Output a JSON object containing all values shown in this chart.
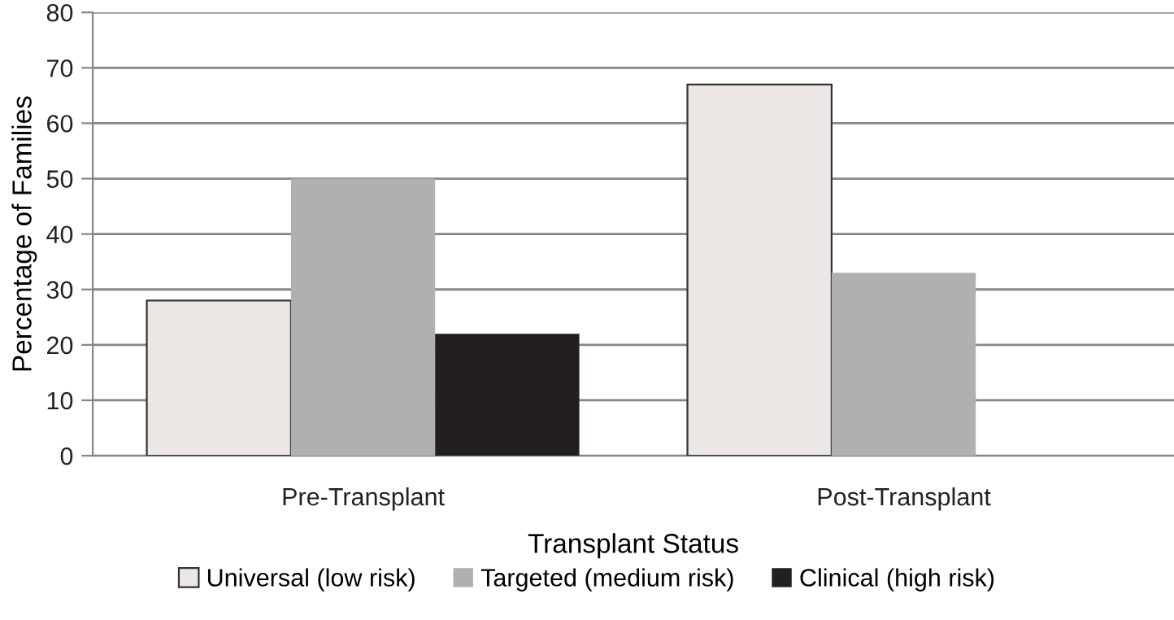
{
  "chart_data": {
    "type": "bar",
    "xlabel": "Transplant Status",
    "ylabel": "Percentage of Families",
    "categories": [
      "Pre-Transplant",
      "Post-Transplant"
    ],
    "series": [
      {
        "name": "Universal (low risk)",
        "color": "#ece6e4",
        "values": [
          28,
          67
        ]
      },
      {
        "name": "Targeted (medium risk)",
        "color": "#afb0b2",
        "values": [
          50,
          33
        ]
      },
      {
        "name": "Clinical (high risk)",
        "color": "#231f20",
        "values": [
          22,
          0
        ]
      }
    ],
    "ylim": [
      0,
      80
    ],
    "yticks": [
      0,
      10,
      20,
      30,
      40,
      50,
      60,
      70,
      80
    ],
    "grid": "y",
    "legend": "bottom"
  }
}
